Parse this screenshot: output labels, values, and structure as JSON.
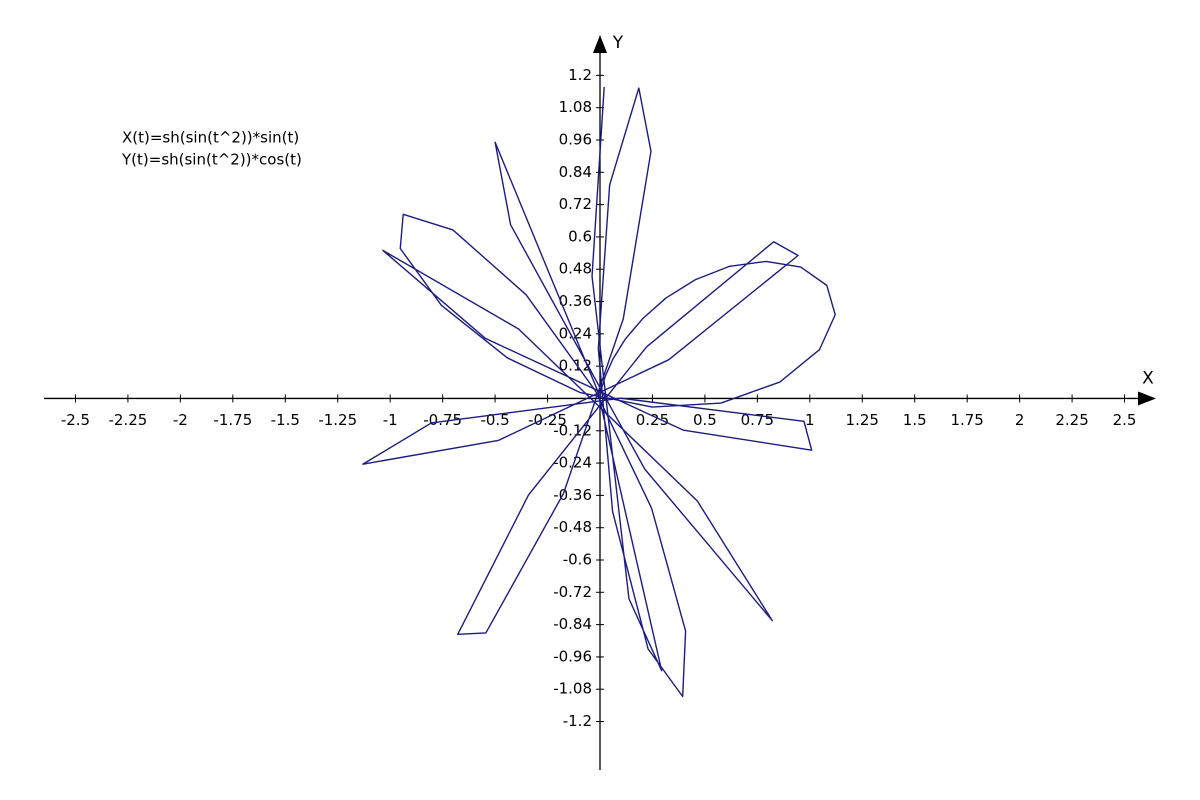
{
  "chart_data": {
    "type": "line",
    "annotations": [
      "X(t)=sh(sin(t^2))*sin(t)",
      "Y(t)=sh(sin(t^2))*cos(t)"
    ],
    "xlabel": "X",
    "ylabel": "Y",
    "xlim": [
      -2.65,
      2.65
    ],
    "ylim": [
      -1.38,
      1.35
    ],
    "xticks": [
      -2.5,
      -2.25,
      -2,
      -1.75,
      -1.5,
      -1.25,
      -1,
      -0.75,
      -0.5,
      -0.25,
      0.25,
      0.5,
      0.75,
      1,
      1.25,
      1.5,
      1.75,
      2,
      2.25,
      2.5
    ],
    "yticks": [
      -1.2,
      -1.08,
      -0.96,
      -0.84,
      -0.72,
      -0.6,
      -0.48,
      -0.36,
      -0.24,
      -0.12,
      0.12,
      0.24,
      0.36,
      0.48,
      0.6,
      0.72,
      0.84,
      0.96,
      1.08,
      1.2
    ],
    "x": [
      0,
      0.001,
      0.008,
      0.027,
      0.062,
      0.12,
      0.203,
      0.314,
      0.454,
      0.618,
      0.792,
      0.957,
      1.081,
      1.121,
      1.046,
      0.857,
      0.577,
      0.249,
      -0.095,
      -0.442,
      -0.756,
      -0.952,
      -0.938,
      -0.701,
      -0.352,
      -0.02,
      0.246,
      0.408,
      0.394,
      0.229,
      0.06,
      -0.008,
      0.046,
      0.185,
      0.243,
      0.111,
      -0.174,
      -0.544,
      -0.678,
      -0.341,
      0.221,
      0.828,
      0.944,
      0.328,
      -0.485,
      -1.13,
      -0.804,
      0.099,
      0.972,
      1.009,
      0.398,
      -0.546,
      -1.035,
      -0.388,
      0.464,
      0.821,
      0.213,
      -0.426,
      -0.5,
      -0.011,
      0.294,
      0.138,
      -0.038,
      0.02
    ],
    "series": [
      {
        "color": "#1c1c82",
        "values": [
          0,
          0.01,
          0.039,
          0.086,
          0.147,
          0.22,
          0.296,
          0.373,
          0.441,
          0.491,
          0.509,
          0.488,
          0.42,
          0.311,
          0.181,
          0.061,
          -0.017,
          -0.032,
          0.022,
          0.151,
          0.346,
          0.557,
          0.684,
          0.626,
          0.385,
          0.026,
          -0.408,
          -0.864,
          -1.107,
          -0.93,
          -0.42,
          0.186,
          0.793,
          1.153,
          0.918,
          0.296,
          -0.353,
          -0.871,
          -0.876,
          -0.359,
          0.191,
          0.582,
          0.531,
          0.144,
          -0.156,
          -0.244,
          -0.091,
          0.001,
          -0.085,
          -0.192,
          -0.118,
          0.223,
          0.55,
          0.258,
          -0.381,
          -0.825,
          -0.262,
          0.645,
          0.952,
          0.028,
          -1.011,
          -0.744,
          0.454,
          1.157
        ]
      }
    ]
  }
}
